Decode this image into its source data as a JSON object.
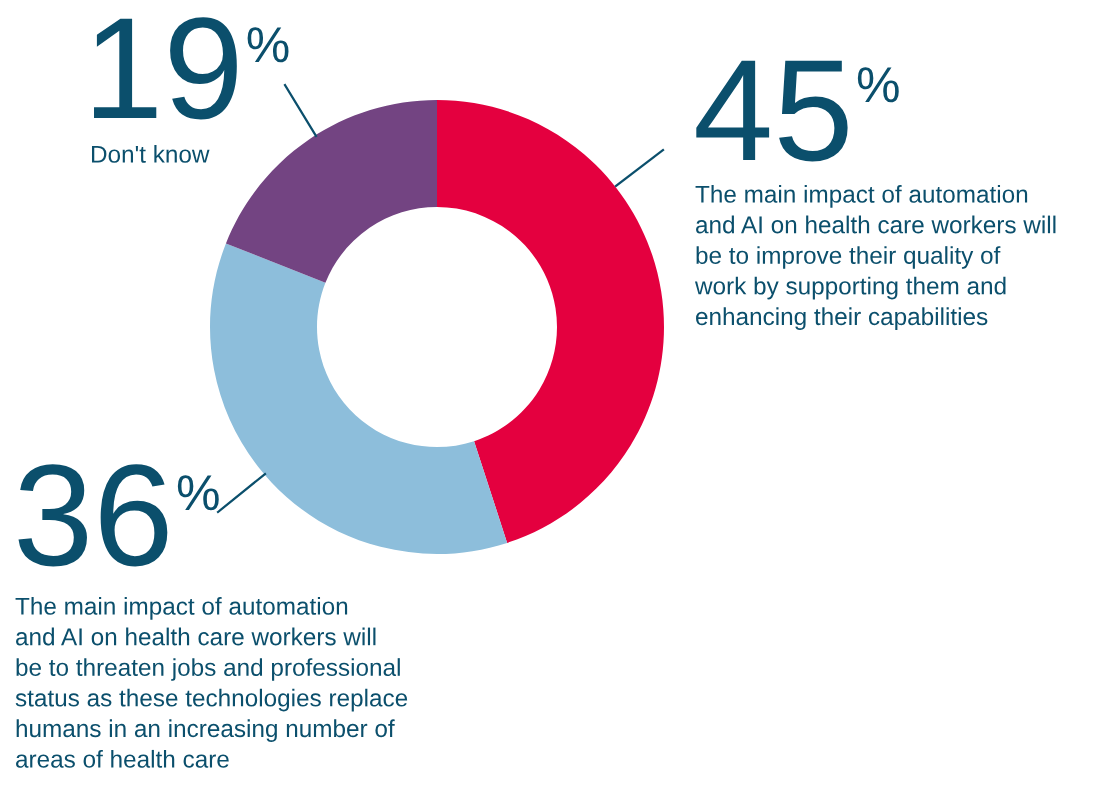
{
  "chart_data": {
    "type": "donut",
    "categories": [
      "The main impact of automation\nand AI on health care workers will\nbe to improve their quality of\nwork by supporting them and\nenhancing their capabilities",
      "The main impact of automation\nand AI on health care workers will\nbe to threaten jobs and professional\nstatus as these technologies replace\nhumans in an increasing number of\nareas of health care",
      "Don't know"
    ],
    "values": [
      45,
      36,
      19
    ],
    "colors": [
      "#e4003f",
      "#8dbedb",
      "#734482"
    ],
    "value_labels": [
      "45%",
      "36%",
      "19%"
    ]
  }
}
